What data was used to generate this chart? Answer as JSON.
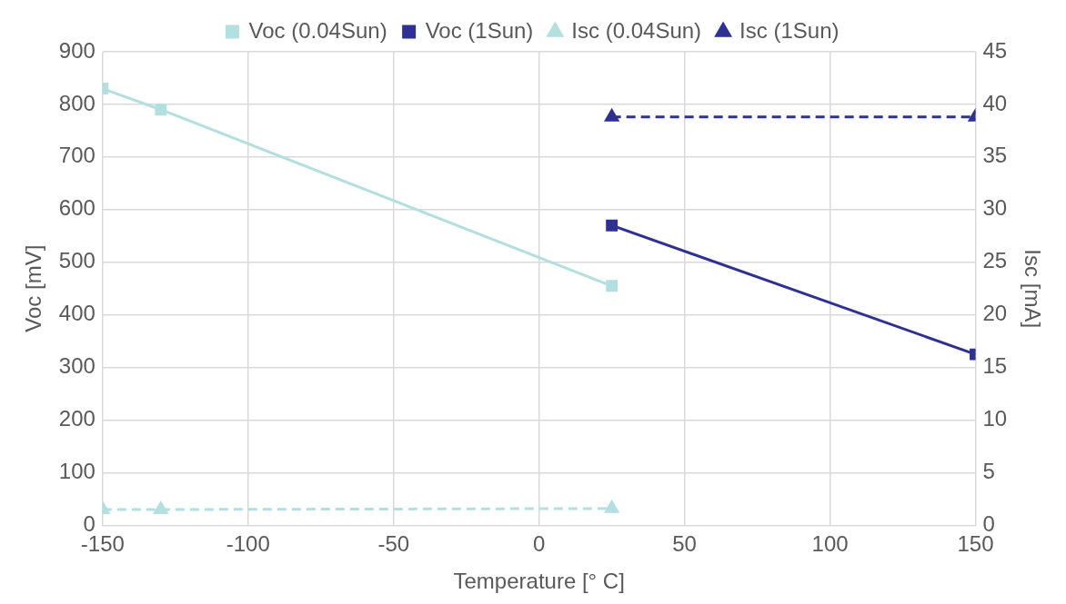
{
  "chart_data": {
    "type": "line",
    "xlabel": "Temperature [° C]",
    "ylabel": "Voc [mV]",
    "y2label": "Isc [mA]",
    "xlim": [
      -150,
      150
    ],
    "xticks": [
      -150,
      -100,
      -50,
      0,
      50,
      100,
      150
    ],
    "ylim": [
      0,
      900
    ],
    "yticks": [
      0,
      100,
      200,
      300,
      400,
      500,
      600,
      700,
      800,
      900
    ],
    "y2lim": [
      0,
      45
    ],
    "y2ticks": [
      0,
      5,
      10,
      15,
      20,
      25,
      30,
      35,
      40,
      45
    ],
    "grid": true,
    "legend": "top",
    "series": [
      {
        "name": "Voc (0.04Sun)",
        "color": "#b4dfe0",
        "x": [
          -150,
          -130,
          25
        ],
        "values": [
          830,
          790,
          455
        ],
        "marker": "square",
        "line_style": "solid"
      },
      {
        "name": "Voc (1Sun)",
        "color": "#2e3192",
        "x": [
          25,
          150
        ],
        "values": [
          570,
          325
        ],
        "marker": "square",
        "line_style": "solid"
      },
      {
        "name": "Isc (0.04Sun)",
        "color": "#b4dfe0",
        "x": [
          -150,
          -130,
          25
        ],
        "values": [
          1.5,
          1.5,
          1.6
        ],
        "axis": "y2",
        "marker": "triangle",
        "line_style": "dashed"
      },
      {
        "name": "Isc (1Sun)",
        "color": "#2e3192",
        "x": [
          25,
          150
        ],
        "values": [
          38.8,
          38.8
        ],
        "axis": "y2",
        "marker": "triangle",
        "line_style": "dashed"
      }
    ]
  }
}
